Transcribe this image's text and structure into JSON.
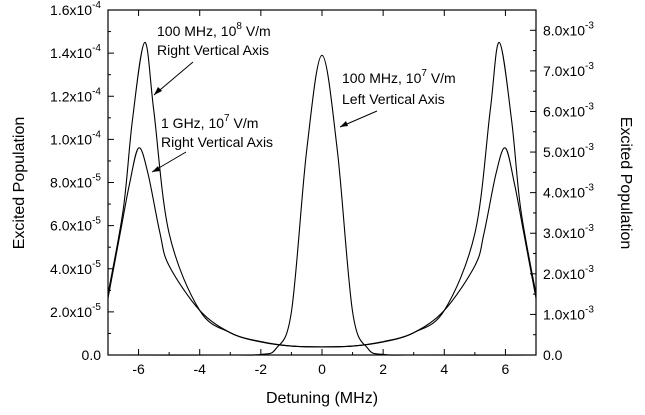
{
  "chart_data": {
    "type": "line",
    "xlabel": "Detuning (MHz)",
    "ylabel_left": "Excited Population",
    "ylabel_right": "Excited Population",
    "xlim": [
      -7,
      7
    ],
    "ylim_left": [
      0,
      0.00016
    ],
    "ylim_right": [
      0,
      0.0085
    ],
    "x_ticks": [
      "-6",
      "-4",
      "-2",
      "0",
      "2",
      "4",
      "6"
    ],
    "y_left_ticks": [
      {
        "mant": "0.0",
        "exp": ""
      },
      {
        "mant": "2.0x10",
        "exp": "-5"
      },
      {
        "mant": "4.0x10",
        "exp": "-5"
      },
      {
        "mant": "6.0x10",
        "exp": "-5"
      },
      {
        "mant": "8.0x10",
        "exp": "-5"
      },
      {
        "mant": "1.0x10",
        "exp": "-4"
      },
      {
        "mant": "1.2x10",
        "exp": "-4"
      },
      {
        "mant": "1.4x10",
        "exp": "-4"
      },
      {
        "mant": "1.6x10",
        "exp": "-4"
      }
    ],
    "y_right_ticks": [
      {
        "mant": "0.0",
        "exp": ""
      },
      {
        "mant": "1.0x10",
        "exp": "-3"
      },
      {
        "mant": "2.0x10",
        "exp": "-3"
      },
      {
        "mant": "3.0x10",
        "exp": "-3"
      },
      {
        "mant": "4.0x10",
        "exp": "-3"
      },
      {
        "mant": "5.0x10",
        "exp": "-3"
      },
      {
        "mant": "6.0x10",
        "exp": "-3"
      },
      {
        "mant": "7.0x10",
        "exp": "-3"
      },
      {
        "mant": "8.0x10",
        "exp": "-3"
      }
    ],
    "series": [
      {
        "axis": "left",
        "values": [
          {
            "x": -7,
            "y": 0
          },
          {
            "x": -3,
            "y": 0
          },
          {
            "x": -2,
            "y": 3e-07
          },
          {
            "x": -1.5,
            "y": 3e-06
          },
          {
            "x": -1,
            "y": 2e-05
          },
          {
            "x": -0.5,
            "y": 9.5e-05
          },
          {
            "x": 0,
            "y": 0.000139
          },
          {
            "x": 0.5,
            "y": 9.5e-05
          },
          {
            "x": 1,
            "y": 2e-05
          },
          {
            "x": 1.5,
            "y": 3e-06
          },
          {
            "x": 2,
            "y": 3e-07
          },
          {
            "x": 3,
            "y": 0
          },
          {
            "x": 7,
            "y": 0
          }
        ]
      },
      {
        "axis": "right",
        "values": [
          {
            "x": -7,
            "y": 0.0015
          },
          {
            "x": -6.5,
            "y": 0.0036
          },
          {
            "x": -6.2,
            "y": 0.0058
          },
          {
            "x": -5.8,
            "y": 0.0077
          },
          {
            "x": -5.5,
            "y": 0.006
          },
          {
            "x": -5,
            "y": 0.003
          },
          {
            "x": -4,
            "y": 0.0011
          },
          {
            "x": -3,
            "y": 0.00055
          },
          {
            "x": -2,
            "y": 0.00032
          },
          {
            "x": -1,
            "y": 0.00022
          },
          {
            "x": 0,
            "y": 0.0002
          },
          {
            "x": 1,
            "y": 0.00022
          },
          {
            "x": 2,
            "y": 0.00032
          },
          {
            "x": 3,
            "y": 0.00055
          },
          {
            "x": 4,
            "y": 0.0011
          },
          {
            "x": 5,
            "y": 0.003
          },
          {
            "x": 5.5,
            "y": 0.006
          },
          {
            "x": 5.8,
            "y": 0.0077
          },
          {
            "x": 6.2,
            "y": 0.0058
          },
          {
            "x": 6.5,
            "y": 0.0036
          },
          {
            "x": 7,
            "y": 0.0015
          }
        ]
      },
      {
        "axis": "right",
        "values": [
          {
            "x": -7,
            "y": 0.0014
          },
          {
            "x": -6.6,
            "y": 0.003
          },
          {
            "x": -6.3,
            "y": 0.0042
          },
          {
            "x": -6,
            "y": 0.0051
          },
          {
            "x": -5.7,
            "y": 0.0045
          },
          {
            "x": -5.3,
            "y": 0.003
          },
          {
            "x": -5,
            "y": 0.0022
          },
          {
            "x": -4,
            "y": 0.0011
          },
          {
            "x": -3,
            "y": 0.00055
          },
          {
            "x": -2,
            "y": 0.00033
          },
          {
            "x": -1,
            "y": 0.00022
          },
          {
            "x": 0,
            "y": 0.0002
          },
          {
            "x": 1,
            "y": 0.00022
          },
          {
            "x": 2,
            "y": 0.00033
          },
          {
            "x": 3,
            "y": 0.00055
          },
          {
            "x": 4,
            "y": 0.0011
          },
          {
            "x": 5,
            "y": 0.0022
          },
          {
            "x": 5.3,
            "y": 0.003
          },
          {
            "x": 5.7,
            "y": 0.0045
          },
          {
            "x": 6,
            "y": 0.0051
          },
          {
            "x": 6.3,
            "y": 0.0042
          },
          {
            "x": 6.6,
            "y": 0.003
          },
          {
            "x": 7,
            "y": 0.0014
          }
        ]
      }
    ],
    "annotations": [
      {
        "line1_a": "100 MHz, 10",
        "line1_sup": "8",
        "line1_b": " V/m",
        "line2": "Right Vertical Axis"
      },
      {
        "line1_a": "100 MHz, 10",
        "line1_sup": "7",
        "line1_b": " V/m",
        "line2": "Left Vertical Axis"
      },
      {
        "line1_a": "1 GHz, 10",
        "line1_sup": "7",
        "line1_b": " V/m",
        "line2": "Right Vertical Axis"
      }
    ]
  }
}
